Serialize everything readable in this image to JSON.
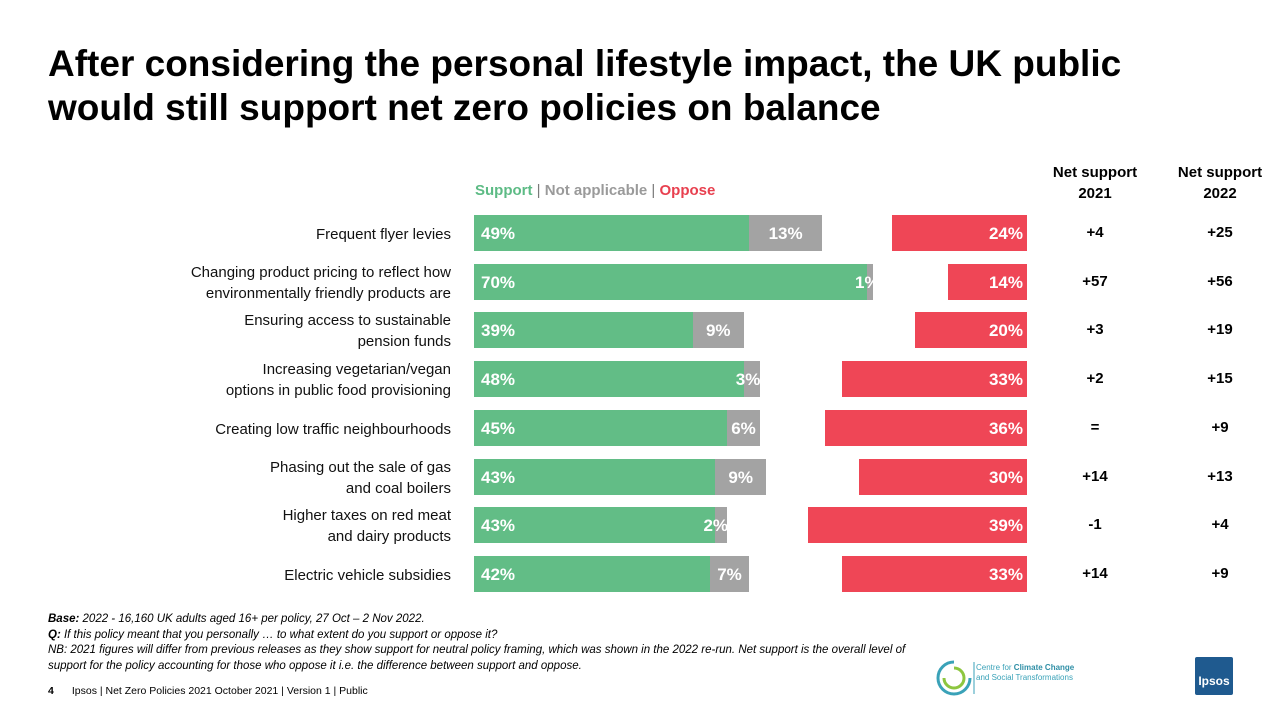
{
  "title": "After considering the personal lifestyle impact, the UK public would still support net zero policies on balance",
  "legend": {
    "support": "Support",
    "sep1": " | ",
    "not_applicable": "Not applicable",
    "sep2": "  | ",
    "oppose": "Oppose"
  },
  "col_headers": {
    "net2021": "Net support 2021",
    "net2022": "Net support 2022"
  },
  "colors": {
    "support": "#62bd86",
    "not_applicable": "#a3a3a3",
    "oppose": "#ef4656"
  },
  "chart_data": {
    "type": "bar",
    "title": "After considering the personal lifestyle impact, the UK public would still support net zero policies on balance",
    "categories": [
      "Frequent flyer levies",
      "Changing product pricing to reflect how environmentally  friendly products are",
      "Ensuring access to sustainable pension funds",
      "Increasing vegetarian/vegan options in public food provisioning",
      "Creating low traffic neighbourhoods",
      "Phasing out the sale of gas and coal boilers",
      "Higher taxes on red meat and dairy products",
      "Electric vehicle subsidies"
    ],
    "series": [
      {
        "name": "Support",
        "values": [
          49,
          70,
          39,
          48,
          45,
          43,
          43,
          42
        ],
        "labels": [
          "49%",
          "70%",
          "39%",
          "48%",
          "45%",
          "43%",
          "43%",
          "42%"
        ]
      },
      {
        "name": "Not applicable",
        "values": [
          13,
          1,
          9,
          3,
          6,
          9,
          2,
          7
        ],
        "labels": [
          "13%",
          "1%",
          "9%",
          "3%",
          "6%",
          "9%",
          "2%",
          "7%"
        ]
      },
      {
        "name": "Oppose",
        "values": [
          24,
          14,
          20,
          33,
          36,
          30,
          39,
          33
        ],
        "labels": [
          "24%",
          "14%",
          "20%",
          "33%",
          "36%",
          "30%",
          "39%",
          "33%"
        ]
      }
    ],
    "net_support_2021": [
      "+4",
      "+57",
      "+3",
      "+2",
      "=",
      "+14",
      "-1",
      "+14"
    ],
    "net_support_2022": [
      "+25",
      "+56",
      "+19",
      "+15",
      "+9",
      "+13",
      "+4",
      "+9"
    ],
    "xlim": [
      0,
      100
    ]
  },
  "row_label_lines": [
    [
      "Frequent flyer levies"
    ],
    [
      "Changing product pricing to reflect how",
      "environmentally  friendly products are"
    ],
    [
      "Ensuring access to sustainable",
      "pension funds"
    ],
    [
      "Increasing vegetarian/vegan",
      "options in public food provisioning"
    ],
    [
      "Creating low traffic neighbourhoods"
    ],
    [
      "Phasing out the sale of gas",
      "and coal boilers"
    ],
    [
      "Higher taxes on red meat",
      "and dairy products"
    ],
    [
      "Electric vehicle subsidies"
    ]
  ],
  "footnote": {
    "base_label": "Base:",
    "base_text": " 2022 - 16,160 UK adults aged 16+ per policy, 27 Oct – 2 Nov 2022.",
    "q_label": "Q:",
    "q_text": " If this policy meant that you personally  … to what extent do you support or oppose it?",
    "nb_text": "NB: 2021 figures will differ from previous releases as they show support for neutral policy framing, which was shown in the 2022 re-run. Net support is the overall  level of support for the policy accounting for those who oppose it i.e. the difference between support and oppose."
  },
  "footer": {
    "page": "4",
    "text": "Ipsos | Net Zero Policies 2021  October 2021 | Version 1 | Public"
  },
  "logos": {
    "cct_line1": "Centre for ",
    "cct_bold1": "Climate Change",
    "cct_line2": "and Social Transformations",
    "ipsos": "Ipsos"
  }
}
